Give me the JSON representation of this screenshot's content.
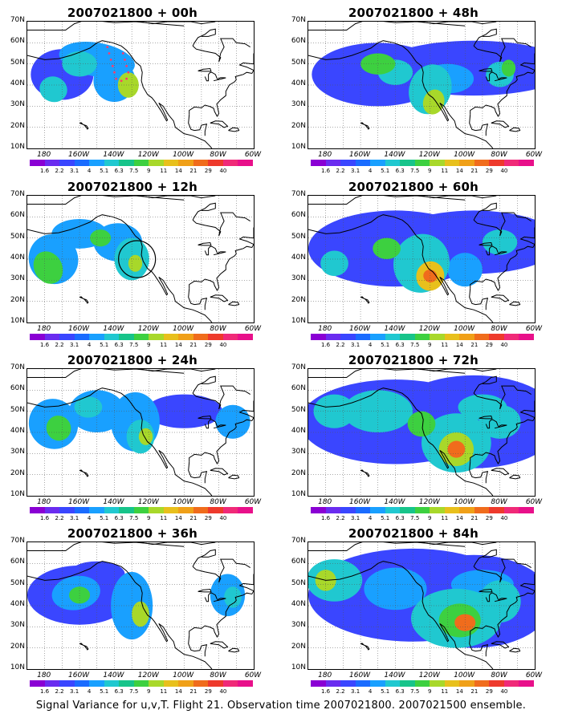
{
  "caption": "Signal Variance for u,v,T. Flight 21. Observation time 2007021800. 2007021500 ensemble.",
  "lat_labels": [
    "70N",
    "60N",
    "50N",
    "40N",
    "30N",
    "20N",
    "10N"
  ],
  "lon_labels": [
    "180",
    "160W",
    "140W",
    "120W",
    "100W",
    "80W",
    "60W"
  ],
  "colorbar": {
    "colors": [
      "#8a00d4",
      "#6a2cf0",
      "#3a46ff",
      "#1a6cff",
      "#19a0ff",
      "#20c8d0",
      "#17c48a",
      "#3dd040",
      "#a8d82a",
      "#e8c01c",
      "#f0a018",
      "#f06c1c",
      "#ee3a2c",
      "#f02a78",
      "#e8108a"
    ],
    "labels": [
      "1.6",
      "2.2",
      "3.1",
      "4",
      "5.1",
      "6.3",
      "7.5",
      "9",
      "11",
      "14",
      "21",
      "29",
      "40"
    ]
  },
  "panels": [
    {
      "title": "2007021800 + 00h"
    },
    {
      "title": "2007021800 + 48h"
    },
    {
      "title": "2007021800 + 12h"
    },
    {
      "title": "2007021800 + 60h"
    },
    {
      "title": "2007021800 + 24h"
    },
    {
      "title": "2007021800 + 72h"
    },
    {
      "title": "2007021800 + 36h"
    },
    {
      "title": "2007021800 + 84h"
    }
  ]
}
